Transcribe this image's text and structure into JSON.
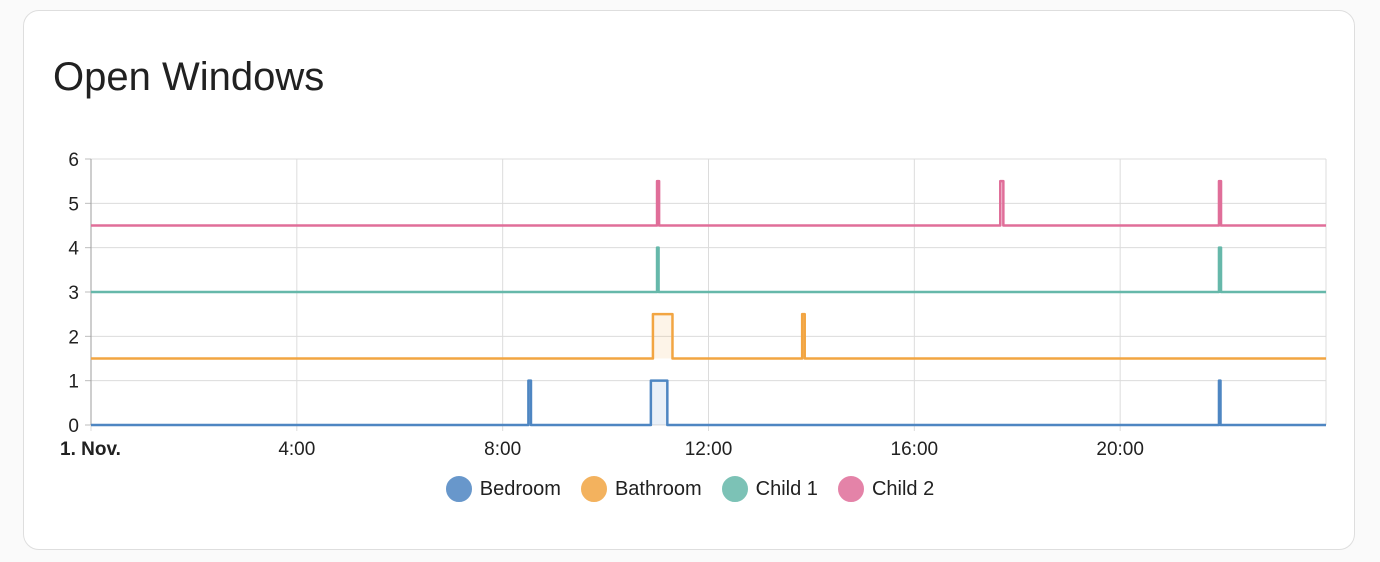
{
  "card": {
    "title": "Open Windows"
  },
  "chart_data": {
    "type": "line",
    "title": "Open Windows",
    "xlabel": "",
    "ylabel": "",
    "ylim": [
      0,
      6
    ],
    "y_ticks": [
      "0",
      "1",
      "2",
      "3",
      "4",
      "5",
      "6"
    ],
    "x_range_hours": [
      0,
      24
    ],
    "x_ticks": [
      {
        "hour": 0,
        "label": "1. Nov.",
        "bold": true
      },
      {
        "hour": 4,
        "label": "4:00",
        "bold": false
      },
      {
        "hour": 8,
        "label": "8:00",
        "bold": false
      },
      {
        "hour": 12,
        "label": "12:00",
        "bold": false
      },
      {
        "hour": 16,
        "label": "16:00",
        "bold": false
      },
      {
        "hour": 20,
        "label": "20:00",
        "bold": false
      }
    ],
    "grid": true,
    "step": true,
    "legend_position": "bottom",
    "series": [
      {
        "name": "Bedroom",
        "color": "#4e86c2",
        "fill": "rgba(78,134,194,0.12)",
        "base": 0,
        "high": 1,
        "open_intervals": [
          [
            8.5,
            8.55
          ],
          [
            10.88,
            11.2
          ],
          [
            21.92,
            21.95
          ]
        ]
      },
      {
        "name": "Bathroom",
        "color": "#f2a542",
        "fill": "rgba(242,165,66,0.12)",
        "base": 1.5,
        "high": 2.5,
        "open_intervals": [
          [
            10.92,
            11.3
          ],
          [
            13.82,
            13.87
          ]
        ]
      },
      {
        "name": "Child 1",
        "color": "#66b8aa",
        "fill": "rgba(102,184,170,0.12)",
        "base": 3,
        "high": 4,
        "open_intervals": [
          [
            11.0,
            11.03
          ],
          [
            21.92,
            21.96
          ]
        ]
      },
      {
        "name": "Child 2",
        "color": "#e06e99",
        "fill": "rgba(224,110,153,0.12)",
        "base": 4.5,
        "high": 5.5,
        "open_intervals": [
          [
            11.0,
            11.04
          ],
          [
            17.67,
            17.73
          ],
          [
            21.92,
            21.96
          ]
        ]
      }
    ]
  }
}
